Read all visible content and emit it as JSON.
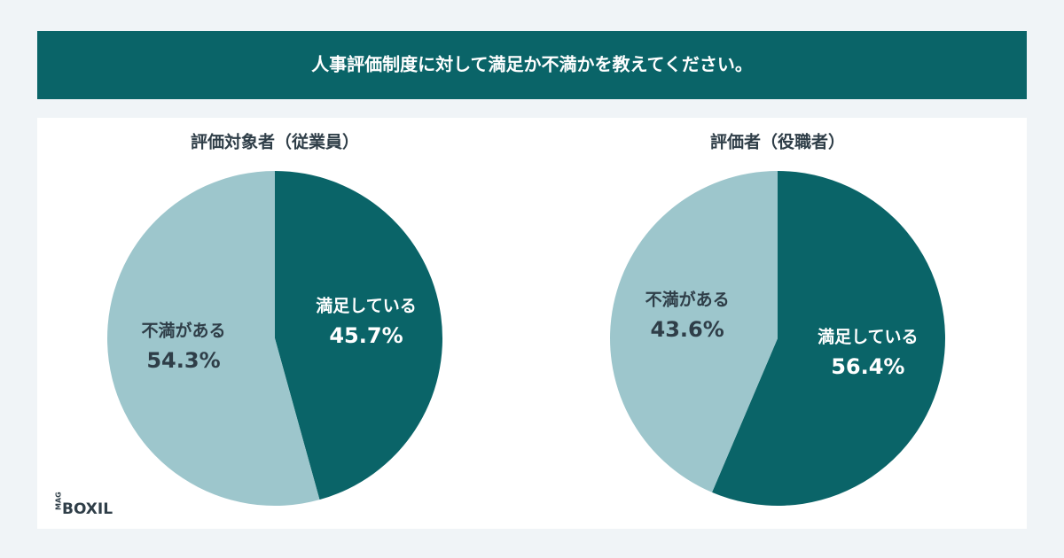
{
  "header": {
    "title": "人事評価制度に対して満足か不満かを教えてください。"
  },
  "chart_data": [
    {
      "type": "pie",
      "title": "評価対象者（従業員）",
      "categories": [
        "満足している",
        "不満がある"
      ],
      "values": [
        45.7,
        54.3
      ],
      "value_labels": [
        "45.7%",
        "54.3%"
      ],
      "colors": [
        "#0a6468",
        "#9dc6cc"
      ]
    },
    {
      "type": "pie",
      "title": "評価者（役職者）",
      "categories": [
        "満足している",
        "不満がある"
      ],
      "values": [
        56.4,
        43.6
      ],
      "value_labels": [
        "56.4%",
        "43.6%"
      ],
      "colors": [
        "#0a6468",
        "#9dc6cc"
      ]
    }
  ],
  "logo": {
    "tag": "MAG",
    "name": "BOXIL"
  }
}
